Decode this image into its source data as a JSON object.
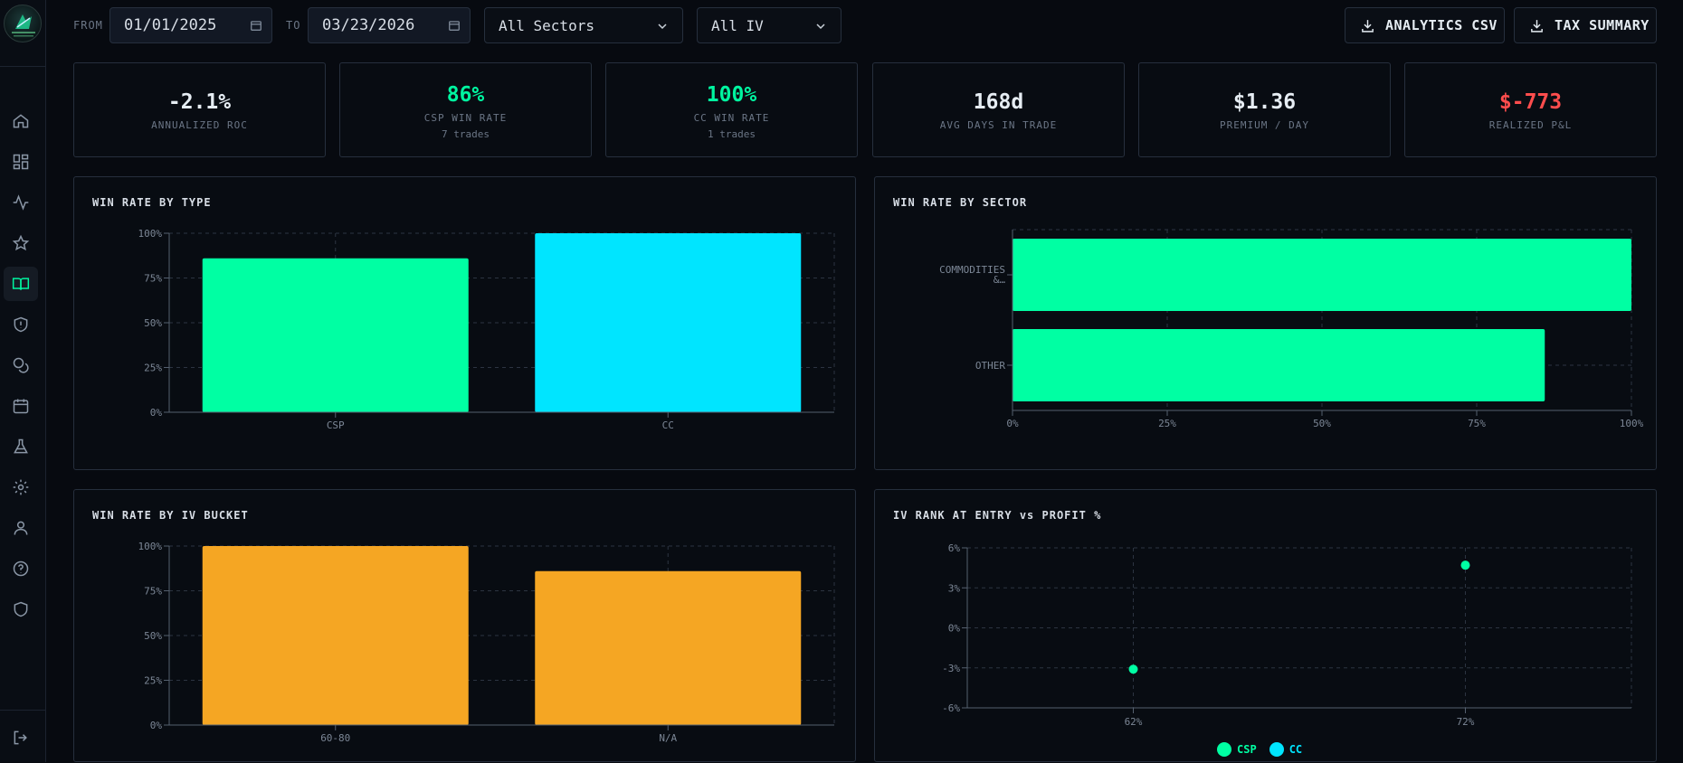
{
  "filters": {
    "from_label": "FROM",
    "from_value": "01/01/2025",
    "to_label": "TO",
    "to_value": "03/23/2026",
    "sector": "All Sectors",
    "iv": "All IV"
  },
  "actions": {
    "analytics_csv": "ANALYTICS CSV",
    "tax_summary": "TAX SUMMARY"
  },
  "nav": [
    {
      "icon": "home-icon"
    },
    {
      "icon": "dashboard-icon"
    },
    {
      "icon": "activity-icon"
    },
    {
      "icon": "star-icon"
    },
    {
      "icon": "book-open-icon",
      "active": true
    },
    {
      "icon": "shield-alert-icon"
    },
    {
      "icon": "coins-icon"
    },
    {
      "icon": "calendar-icon"
    },
    {
      "icon": "flask-icon"
    },
    {
      "icon": "gear-icon"
    },
    {
      "icon": "user-icon"
    },
    {
      "icon": "help-icon"
    },
    {
      "icon": "shield-icon"
    },
    {
      "icon": "logout-icon"
    }
  ],
  "stats": [
    {
      "value": "-2.1%",
      "label": "ANNUALIZED ROC",
      "color": "#e6edf3"
    },
    {
      "value": "86%",
      "label": "CSP WIN RATE",
      "note": "7 trades",
      "color": "#00f5a0"
    },
    {
      "value": "100%",
      "label": "CC WIN RATE",
      "note": "1 trades",
      "color": "#00f5a0"
    },
    {
      "value": "168d",
      "label": "AVG DAYS IN TRADE",
      "color": "#e6edf3"
    },
    {
      "value": "$1.36",
      "label": "PREMIUM / DAY",
      "color": "#e6edf3"
    },
    {
      "value": "$-773",
      "label": "REALIZED P&L",
      "color": "#ff4d4d"
    }
  ],
  "chart_titles": {
    "type": "WIN RATE BY TYPE",
    "sector": "WIN RATE BY SECTOR",
    "iv_bucket": "WIN RATE BY IV BUCKET",
    "iv_rank": "IV RANK AT ENTRY vs PROFIT %"
  },
  "legend": {
    "csp": "CSP",
    "cc": "CC"
  },
  "colors": {
    "green": "#00ffa3",
    "cyan": "#00e5ff",
    "orange": "#f5a623",
    "red": "#ff4d4d"
  },
  "chart_data": [
    {
      "type": "bar",
      "title": "WIN RATE BY TYPE",
      "categories": [
        "CSP",
        "CC"
      ],
      "values": [
        86,
        100
      ],
      "colors": [
        "#00ffa3",
        "#00e5ff"
      ],
      "ylim": [
        0,
        100
      ],
      "yticks": [
        "0%",
        "25%",
        "50%",
        "75%",
        "100%"
      ]
    },
    {
      "type": "bar",
      "orientation": "horizontal",
      "title": "WIN RATE BY SECTOR",
      "categories": [
        "COMMODITIES &…",
        "OTHER"
      ],
      "values": [
        100,
        86
      ],
      "xlim": [
        0,
        100
      ],
      "xticks": [
        "0%",
        "25%",
        "50%",
        "75%",
        "100%"
      ]
    },
    {
      "type": "bar",
      "title": "WIN RATE BY IV BUCKET",
      "categories": [
        "60-80",
        "N/A"
      ],
      "values": [
        100,
        86
      ],
      "ylim": [
        0,
        100
      ],
      "yticks": [
        "0%",
        "25%",
        "50%",
        "75%",
        "100%"
      ]
    },
    {
      "type": "scatter",
      "title": "IV RANK AT ENTRY vs PROFIT %",
      "xticks": [
        "62%",
        "72%"
      ],
      "yticks": [
        "-6%",
        "-3%",
        "0%",
        "3%",
        "6%"
      ],
      "ylim": [
        -6,
        6
      ],
      "series": [
        {
          "name": "CSP",
          "points": [
            {
              "x": "62%",
              "y": -3.1
            },
            {
              "x": "72%",
              "y": 4.7
            }
          ]
        },
        {
          "name": "CC",
          "points": []
        }
      ],
      "legend": "bottom-center"
    }
  ]
}
